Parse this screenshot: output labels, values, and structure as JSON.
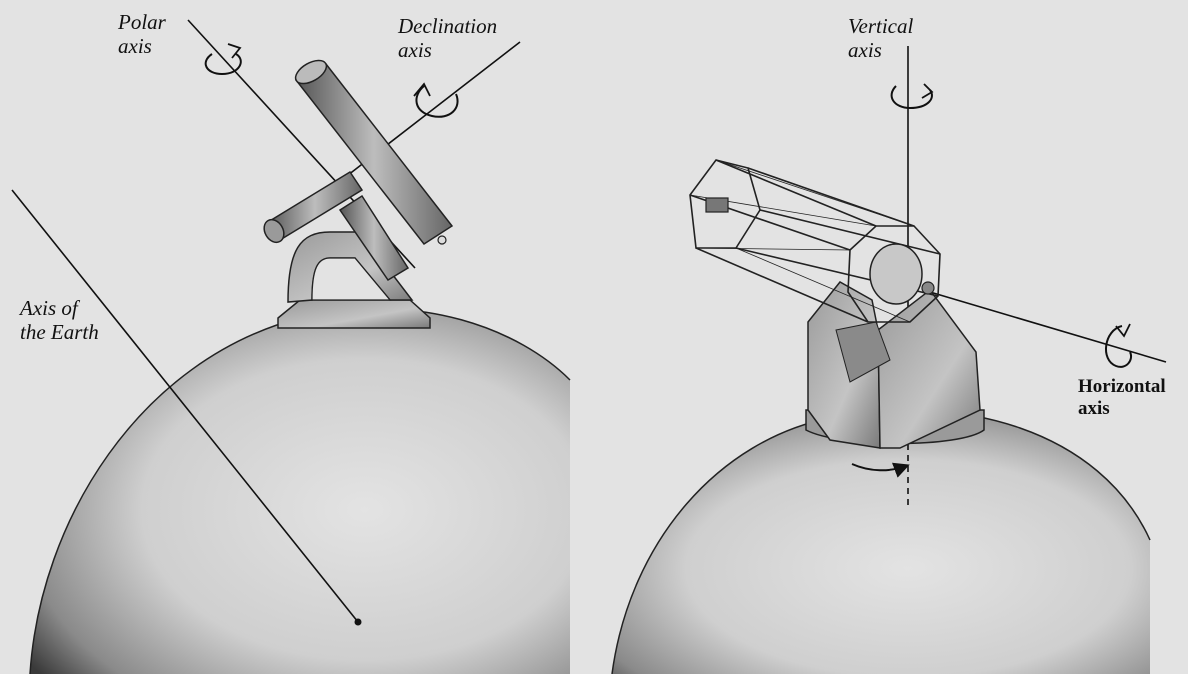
{
  "labels": {
    "polar_axis": {
      "line1": "Polar",
      "line2": "axis"
    },
    "declination_axis": {
      "line1": "Declination",
      "line2": "axis"
    },
    "earth_axis": {
      "line1": "Axis of",
      "line2": "the Earth"
    },
    "vertical_axis": {
      "line1": "Vertical",
      "line2": "axis"
    },
    "horizontal_axis": {
      "line1": "Horizontal",
      "line2": "axis"
    }
  },
  "colors": {
    "background": "#e3e3e3",
    "ink": "#111111",
    "globe_fill": "#e3e3e3"
  }
}
